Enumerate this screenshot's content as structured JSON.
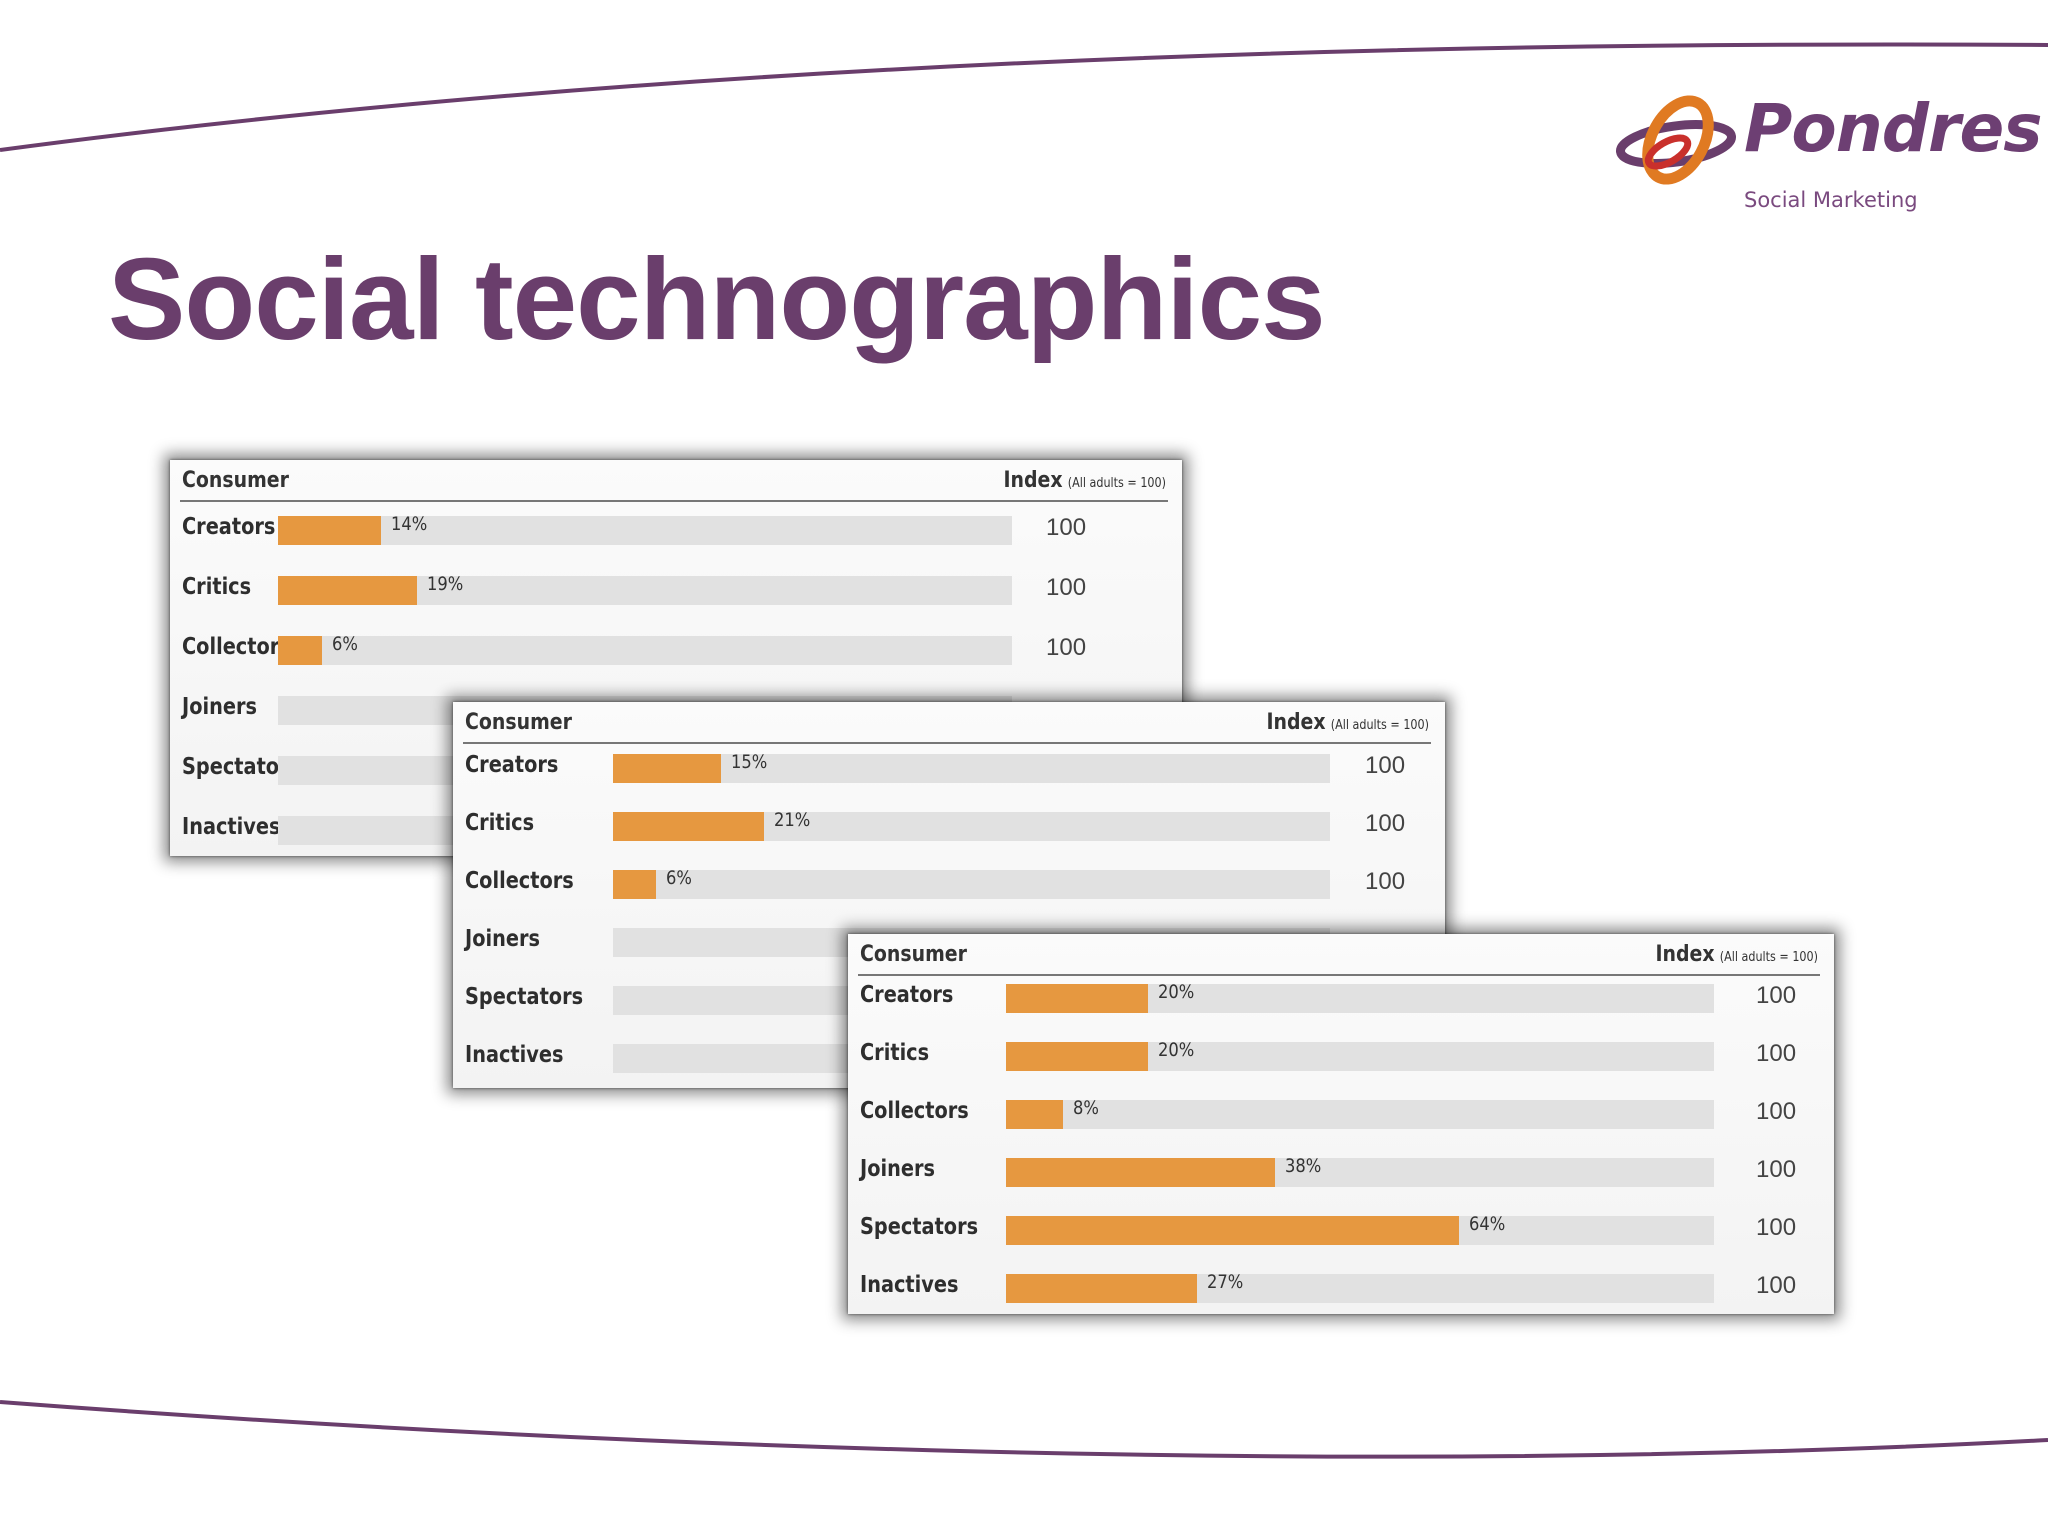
{
  "slide": {
    "title": "Social technographics",
    "accent_color": "#6a3e6c",
    "bar_color": "#e69840",
    "track_color": "#e1e1e1"
  },
  "logo": {
    "name": "Pondres",
    "tagline": "Social Marketing",
    "icon": "pondres-swirl-logo"
  },
  "chart_data": [
    {
      "type": "bar",
      "orientation": "horizontal",
      "header": {
        "category_label": "Consumer",
        "index_label": "Index",
        "index_note": "(All adults = 100)"
      },
      "categories": [
        "Creators",
        "Critics",
        "Collectors",
        "Joiners",
        "Spectators",
        "Inactives"
      ],
      "values": [
        14,
        19,
        6,
        null,
        null,
        null
      ],
      "labels": [
        "14%",
        "19%",
        "6%",
        "",
        "",
        ""
      ],
      "index": [
        "100",
        "100",
        "100",
        "",
        "",
        ""
      ],
      "xlim": [
        0,
        100
      ]
    },
    {
      "type": "bar",
      "orientation": "horizontal",
      "header": {
        "category_label": "Consumer",
        "index_label": "Index",
        "index_note": "(All adults = 100)"
      },
      "categories": [
        "Creators",
        "Critics",
        "Collectors",
        "Joiners",
        "Spectators",
        "Inactives"
      ],
      "values": [
        15,
        21,
        6,
        null,
        null,
        null
      ],
      "labels": [
        "15%",
        "21%",
        "6%",
        "",
        "",
        ""
      ],
      "index": [
        "100",
        "100",
        "100",
        "",
        "",
        ""
      ],
      "xlim": [
        0,
        100
      ]
    },
    {
      "type": "bar",
      "orientation": "horizontal",
      "header": {
        "category_label": "Consumer",
        "index_label": "Index",
        "index_note": "(All adults = 100)"
      },
      "categories": [
        "Creators",
        "Critics",
        "Collectors",
        "Joiners",
        "Spectators",
        "Inactives"
      ],
      "values": [
        20,
        20,
        8,
        38,
        64,
        27
      ],
      "labels": [
        "20%",
        "20%",
        "8%",
        "38%",
        "64%",
        "27%"
      ],
      "index": [
        "100",
        "100",
        "100",
        "100",
        "100",
        "100"
      ],
      "xlim": [
        0,
        100
      ]
    }
  ]
}
